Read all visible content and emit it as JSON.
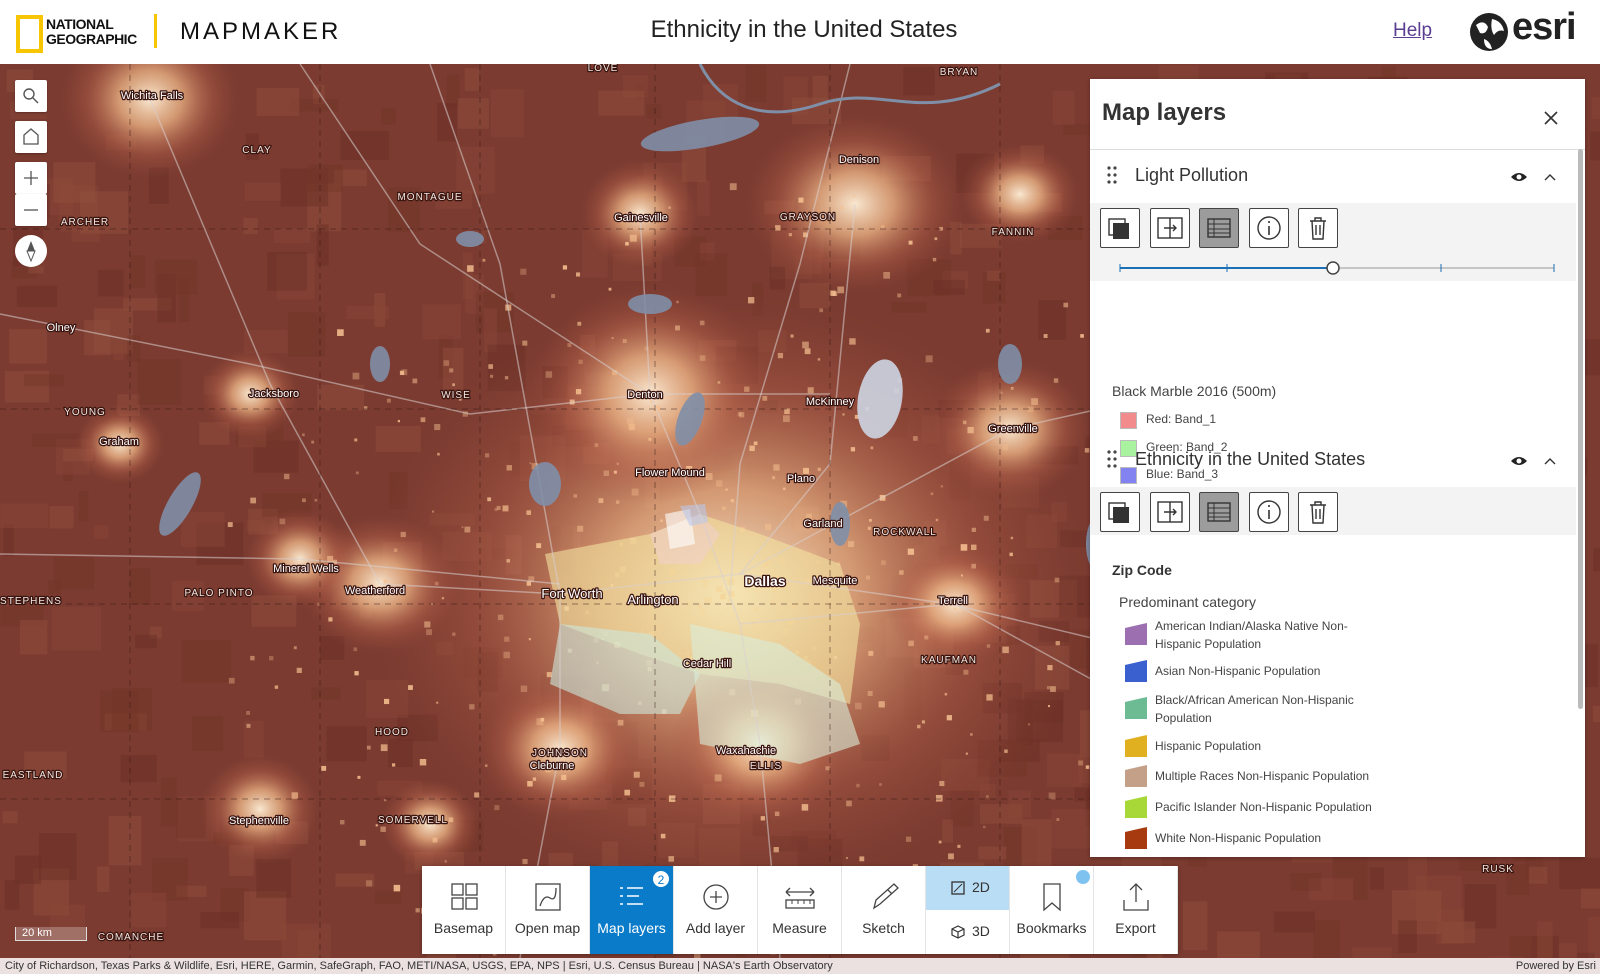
{
  "header": {
    "logo_line1": "NATIONAL",
    "logo_line2": "GEOGRAPHIC",
    "app_name": "MAPMAKER",
    "title": "Ethnicity in the United States",
    "help": "Help",
    "brand": "esri"
  },
  "map": {
    "labels": [
      "Wichita Falls",
      "CLAY",
      "MONTAGUE",
      "ARCHER",
      "Olney",
      "Jacksboro",
      "YOUNG",
      "Graham",
      "WISE",
      "Denton",
      "McKinney",
      "Denison",
      "Gainesville",
      "GRAYSON",
      "FANNIN",
      "BRYAN",
      "LOVE",
      "Greenville",
      "Flower Mound",
      "Plano",
      "Garland",
      "ROCKWALL",
      "Dallas",
      "Mesquite",
      "Fort Worth",
      "Arlington",
      "Terrell",
      "Mineral Wells",
      "PALO PINTO",
      "Weatherford",
      "STEPHENS",
      "Cedar Hill",
      "KAUFMAN",
      "HOOD",
      "JOHNSON",
      "Cleburne",
      "Waxahachie",
      "ELLIS",
      "EASTLAND",
      "Stephenville",
      "SOMERVELL",
      "COMANCHE",
      "RUSK"
    ],
    "scale": "20 km",
    "attribution": "City of Richardson, Texas Parks & Wildlife, Esri, HERE, Garmin, SafeGraph, FAO, METI/NASA, USGS, EPA, NPS | Esri, U.S. Census Bureau | NASA's Earth Observatory",
    "powered_by": "Powered by Esri"
  },
  "panel": {
    "title": "Map layers",
    "layers": [
      {
        "name": "Light Pollution",
        "legend_title": "Black Marble 2016 (500m)",
        "items": [
          {
            "label": "Red: Band_1",
            "color": "#f28b8b"
          },
          {
            "label": "Green: Band_2",
            "color": "#a9f2a0"
          },
          {
            "label": "Blue: Band_3",
            "color": "#8282f0"
          }
        ]
      },
      {
        "name": "Ethnicity in the United States",
        "legend_title": "Zip Code",
        "legend_subtitle": "Predominant category",
        "items": [
          {
            "label": "American Indian/Alaska Native Non-Hispanic Population",
            "color": "#9b6fb0"
          },
          {
            "label": "Asian Non-Hispanic Population",
            "color": "#3a5fcf"
          },
          {
            "label": "Black/African American Non-Hispanic Population",
            "color": "#6dbb92"
          },
          {
            "label": "Hispanic Population",
            "color": "#e0b020"
          },
          {
            "label": "Multiple Races Non-Hispanic Population",
            "color": "#c4a088"
          },
          {
            "label": "Pacific Islander Non-Hispanic Population",
            "color": "#a8d838"
          },
          {
            "label": "White Non-Hispanic Population",
            "color": "#a83a10"
          }
        ]
      }
    ]
  },
  "toolbar": {
    "buttons": [
      "Basemap",
      "Open map",
      "Map layers",
      "Add layer",
      "Measure",
      "Sketch",
      "Bookmarks",
      "Export"
    ],
    "map_layers_badge": 2,
    "view_toggle": [
      "2D",
      "3D"
    ]
  }
}
